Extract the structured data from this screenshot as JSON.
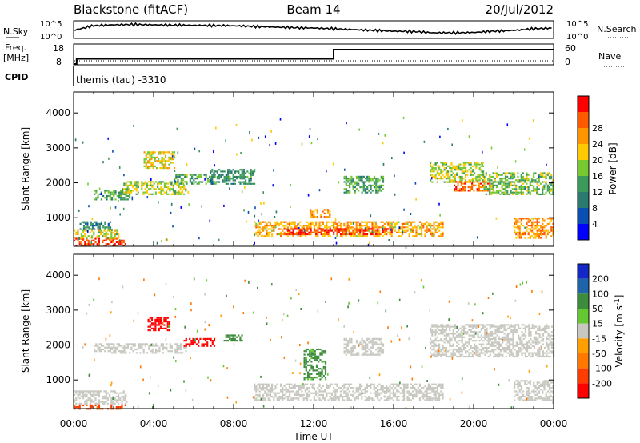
{
  "header": {
    "station": "Blackstone (fitACF)",
    "beam": "Beam 14",
    "date": "20/Jul/2012"
  },
  "top_panels": {
    "nsky_label": "N.Sky",
    "nsearch_label": "N.Search",
    "noise_tick_hi": "10^5",
    "noise_tick_lo": "10^0",
    "freq_label": "Freq.",
    "freq_unit": "[MHz]",
    "freq_ticks": [
      "18",
      "8"
    ],
    "nave_label": "Nave",
    "nave_ticks": [
      "60",
      "0"
    ],
    "cpid_label": "CPID",
    "cpid_text": "themis (tau) -3310"
  },
  "colors": {
    "power_scale": [
      "#0000ff",
      "#0a50b4",
      "#2a7a70",
      "#3c9a5a",
      "#78c832",
      "#ffc800",
      "#ff9600",
      "#ff5a00",
      "#ff0000"
    ],
    "velocity_scale": [
      "#1428c8",
      "#1e64aa",
      "#3c8c3c",
      "#64c832",
      "#c8c8c0",
      "#ffa000",
      "#ff7800",
      "#ff3c00",
      "#ff0000"
    ],
    "ground_scatter": "#c8c8c0"
  },
  "chart_data": [
    {
      "type": "heatmap",
      "name": "power",
      "ylabel": "Slant Range [km]",
      "yticks": [
        "1000",
        "2000",
        "3000",
        "4000"
      ],
      "ylim": [
        180,
        4600
      ],
      "xlim_hours": [
        0,
        24
      ],
      "colorbar": {
        "label": "Power [dB]",
        "ticks": [
          "4",
          "8",
          "12",
          "16",
          "20",
          "24",
          "28"
        ],
        "range": [
          0,
          30
        ]
      },
      "scatter_regions": [
        {
          "t0": 0.0,
          "t1": 2.6,
          "r0": 200,
          "r1": 420,
          "level": 26
        },
        {
          "t0": 0.0,
          "t1": 2.2,
          "r0": 420,
          "r1": 650,
          "level": 17
        },
        {
          "t0": 0.3,
          "t1": 1.8,
          "r0": 650,
          "r1": 900,
          "level": 9
        },
        {
          "t0": 1.0,
          "t1": 2.8,
          "r0": 1500,
          "r1": 1800,
          "level": 12
        },
        {
          "t0": 2.4,
          "t1": 5.6,
          "r0": 1650,
          "r1": 2050,
          "level": 16
        },
        {
          "t0": 5.0,
          "t1": 7.2,
          "r0": 1950,
          "r1": 2250,
          "level": 12
        },
        {
          "t0": 3.5,
          "t1": 5.0,
          "r0": 2400,
          "r1": 2900,
          "level": 18
        },
        {
          "t0": 6.8,
          "t1": 9.0,
          "r0": 1950,
          "r1": 2400,
          "level": 10
        },
        {
          "t0": 9.0,
          "t1": 18.5,
          "r0": 450,
          "r1": 900,
          "level": 20
        },
        {
          "t0": 10.5,
          "t1": 16.0,
          "r0": 500,
          "r1": 700,
          "level": 27
        },
        {
          "t0": 11.8,
          "t1": 12.8,
          "r0": 1000,
          "r1": 1250,
          "level": 22
        },
        {
          "t0": 13.5,
          "t1": 15.5,
          "r0": 1700,
          "r1": 2200,
          "level": 12
        },
        {
          "t0": 17.8,
          "t1": 20.5,
          "r0": 2000,
          "r1": 2600,
          "level": 16
        },
        {
          "t0": 19.0,
          "t1": 20.8,
          "r0": 1750,
          "r1": 2050,
          "level": 24
        },
        {
          "t0": 20.5,
          "t1": 24.0,
          "r0": 1650,
          "r1": 2300,
          "level": 14
        },
        {
          "t0": 22.0,
          "t1": 24.0,
          "r0": 400,
          "r1": 1000,
          "level": 22
        }
      ]
    },
    {
      "type": "heatmap",
      "name": "velocity",
      "ylabel": "Slant Range [km]",
      "yticks": [
        "1000",
        "2000",
        "3000",
        "4000"
      ],
      "ylim": [
        180,
        4600
      ],
      "xlim_hours": [
        0,
        24
      ],
      "xticks": [
        "00:00",
        "04:00",
        "08:00",
        "12:00",
        "16:00",
        "20:00",
        "00:00"
      ],
      "xlabel": "Time UT",
      "colorbar": {
        "label": "Velocity [m s^-1]",
        "ticks": [
          "200",
          "100",
          "50",
          "15",
          "-15",
          "-50",
          "-100",
          "-200"
        ]
      },
      "scatter_regions": [
        {
          "t0": 0.0,
          "t1": 2.6,
          "r0": 300,
          "r1": 700,
          "level": -5
        },
        {
          "t0": 0.0,
          "t1": 2.6,
          "r0": 180,
          "r1": 300,
          "level": -80
        },
        {
          "t0": 1.0,
          "t1": 5.6,
          "r0": 1750,
          "r1": 2050,
          "level": 0
        },
        {
          "t0": 3.7,
          "t1": 4.8,
          "r0": 2400,
          "r1": 2800,
          "level": -200
        },
        {
          "t0": 5.5,
          "t1": 7.0,
          "r0": 1950,
          "r1": 2200,
          "level": -220
        },
        {
          "t0": 7.5,
          "t1": 8.5,
          "r0": 2100,
          "r1": 2300,
          "level": 60
        },
        {
          "t0": 9.0,
          "t1": 18.5,
          "r0": 400,
          "r1": 900,
          "level": 0
        },
        {
          "t0": 11.5,
          "t1": 12.6,
          "r0": 1000,
          "r1": 1900,
          "level": 40
        },
        {
          "t0": 13.5,
          "t1": 15.5,
          "r0": 1700,
          "r1": 2200,
          "level": 2
        },
        {
          "t0": 17.8,
          "t1": 24.0,
          "r0": 1650,
          "r1": 2600,
          "level": 0
        },
        {
          "t0": 22.0,
          "t1": 24.0,
          "r0": 400,
          "r1": 1000,
          "level": 0
        }
      ]
    },
    {
      "type": "line",
      "name": "noise",
      "series": [
        {
          "name": "N.Sky",
          "x": [
            0,
            1,
            2,
            3,
            4,
            5,
            6,
            7,
            8,
            9,
            10,
            11,
            12,
            13,
            14,
            15,
            16,
            17,
            18,
            19,
            20,
            21,
            22,
            23,
            24
          ],
          "values": [
            0.45,
            0.75,
            0.8,
            0.82,
            0.8,
            0.78,
            0.77,
            0.76,
            0.74,
            0.7,
            0.66,
            0.62,
            0.6,
            0.55,
            0.5,
            0.45,
            0.4,
            0.38,
            0.3,
            0.3,
            0.32,
            0.4,
            0.45,
            0.55,
            0.6
          ]
        }
      ]
    },
    {
      "type": "line",
      "name": "frequency",
      "series": [
        {
          "name": "Freq.",
          "x": [
            0,
            0.15,
            0.15,
            13.0,
            13.0,
            24
          ],
          "values": [
            8,
            8,
            10.7,
            10.7,
            15.5,
            15.5
          ]
        }
      ]
    }
  ]
}
